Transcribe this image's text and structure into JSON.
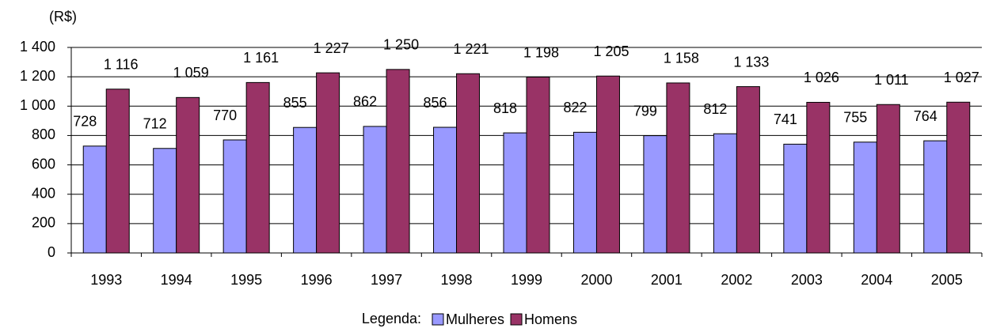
{
  "chart_data": {
    "type": "bar",
    "y_axis_label": "(R$)",
    "categories": [
      "1993",
      "1994",
      "1995",
      "1996",
      "1997",
      "1998",
      "1999",
      "2000",
      "2001",
      "2002",
      "2003",
      "2004",
      "2005"
    ],
    "series": [
      {
        "name": "Mulheres",
        "color": "#9999ff",
        "values": [
          728,
          712,
          770,
          855,
          862,
          856,
          818,
          822,
          799,
          812,
          741,
          755,
          764
        ]
      },
      {
        "name": "Homens",
        "color": "#993366",
        "values": [
          1116,
          1059,
          1161,
          1227,
          1250,
          1221,
          1198,
          1205,
          1158,
          1133,
          1026,
          1011,
          1027
        ],
        "value_labels": [
          "1 116",
          "1 059",
          "1 161",
          "1 227",
          "1 250",
          "1 221",
          "1 198",
          "1 205",
          "1 158",
          "1 133",
          "1 026",
          "1 011",
          "1 027"
        ]
      }
    ],
    "ylim": [
      0,
      1400
    ],
    "yticks": [
      0,
      200,
      400,
      600,
      800,
      {
        "value": 1000,
        "label": "1 000"
      },
      {
        "value": 1200,
        "label": "1 200"
      },
      {
        "value": 1400,
        "label": "1 400"
      }
    ],
    "grid": true,
    "legend_title": "Legenda:",
    "legend_position": "bottom"
  }
}
